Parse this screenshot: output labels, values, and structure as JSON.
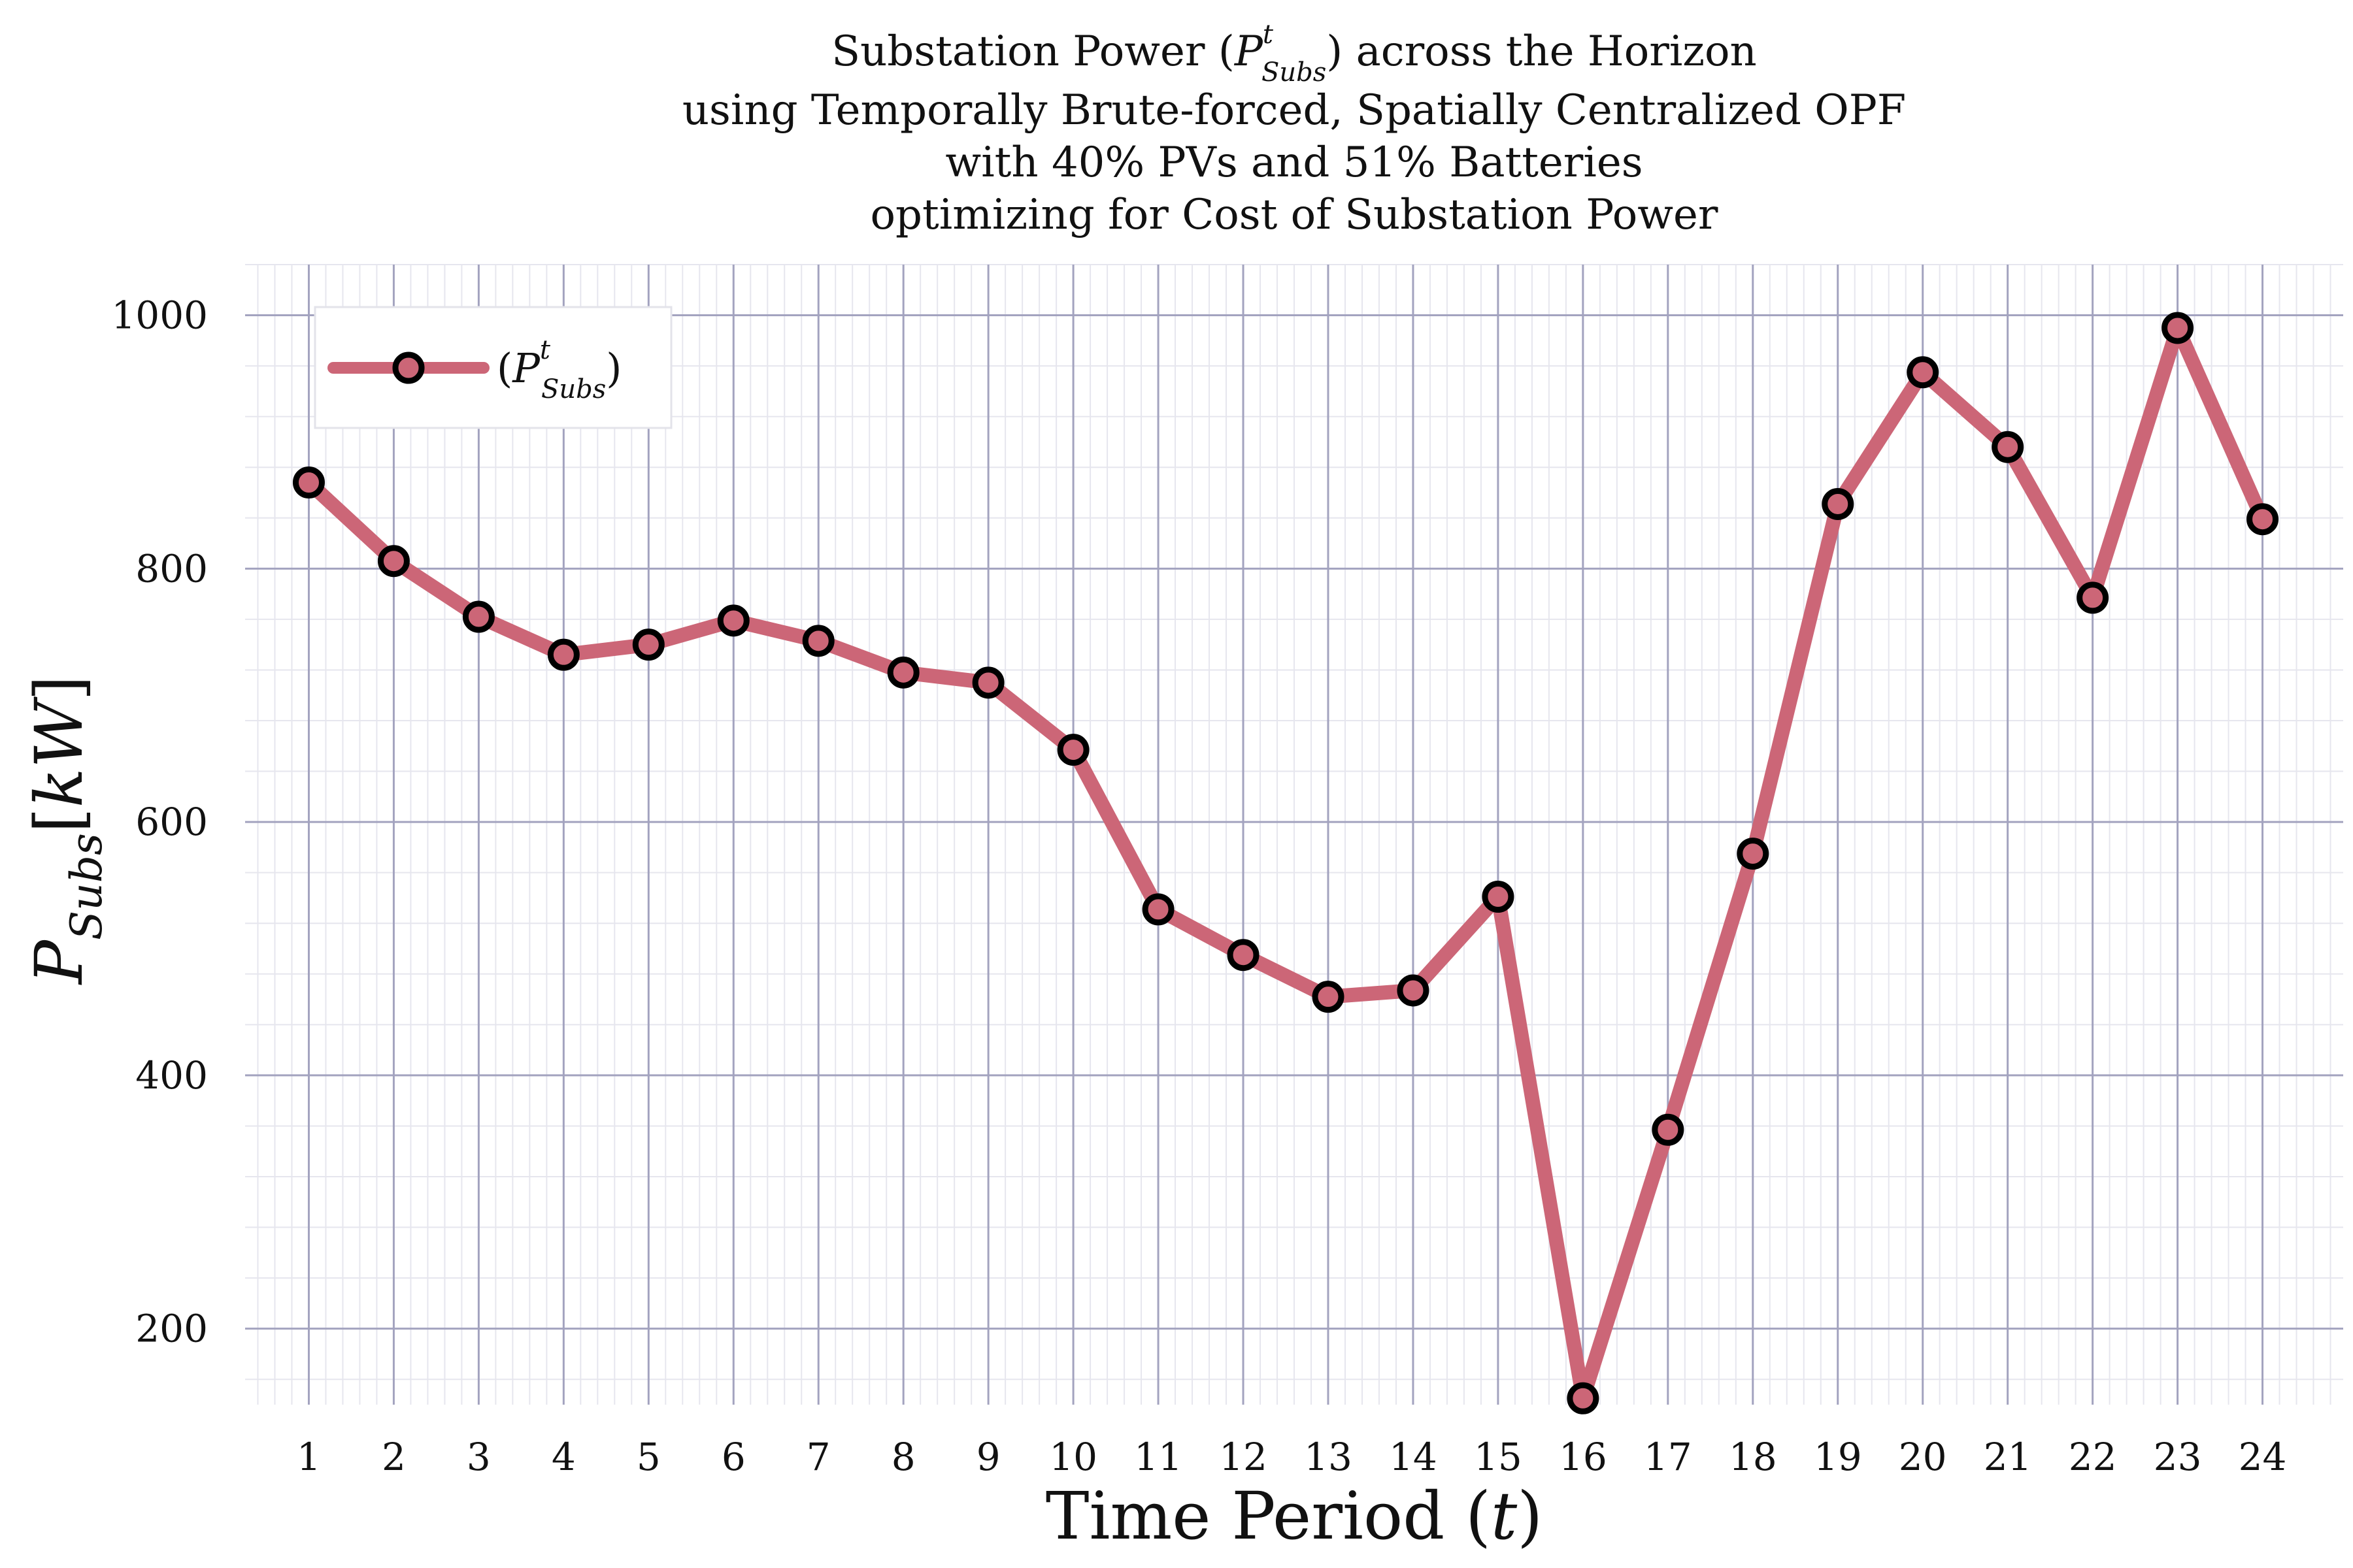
{
  "chart_data": {
    "type": "line",
    "title_lines": [
      [
        "Substation Power (",
        "P",
        "Subs",
        "t",
        ") across the Horizon"
      ],
      "using Temporally Brute-forced, Spatially Centralized OPF",
      "with 40% PVs and 51% Batteries",
      "optimizing for Cost of Substation Power"
    ],
    "xlabel": "Time Period (t)",
    "ylabel": "P_Subs [kW]",
    "x": [
      1,
      2,
      3,
      4,
      5,
      6,
      7,
      8,
      9,
      10,
      11,
      12,
      13,
      14,
      15,
      16,
      17,
      18,
      19,
      20,
      21,
      22,
      23,
      24
    ],
    "series": [
      {
        "name": "(P^t_Subs)",
        "values": [
          868,
          806,
          762,
          732,
          740,
          759,
          743,
          718,
          710,
          657,
          531,
          495,
          462,
          467,
          541,
          145,
          357,
          575,
          851,
          955,
          896,
          777,
          990,
          839
        ]
      }
    ],
    "xlim": [
      0.25,
      24.95
    ],
    "ylim": [
      140,
      1040
    ],
    "yticks": [
      200,
      400,
      600,
      800,
      1000
    ],
    "grid": true,
    "legend_position": "top-left",
    "colors": {
      "line": "#cc6677",
      "marker_edge": "#000000",
      "grid_major": "#a3a3bf",
      "grid_minor": "#e6e6ee"
    }
  }
}
